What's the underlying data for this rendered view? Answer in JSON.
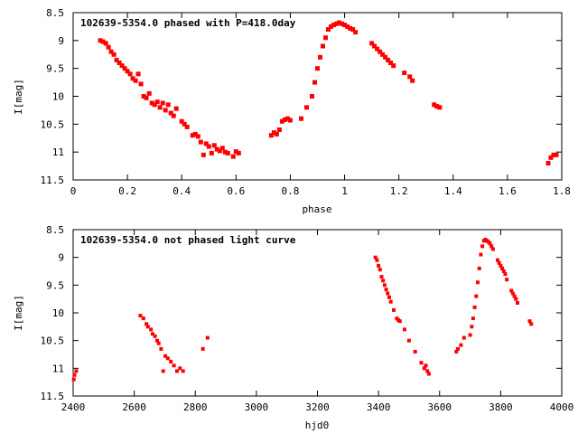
{
  "chart_data": [
    {
      "type": "scatter",
      "title": "102639-5354.0 phased with P=418.0day",
      "xlabel": "phase",
      "ylabel": "I[mag]",
      "xlim": [
        0,
        1.8
      ],
      "ylim": [
        8.5,
        11.5
      ],
      "y_inverted": true,
      "xticks": [
        "0",
        "0.2",
        "0.4",
        "0.6",
        "0.8",
        "1",
        "1.2",
        "1.4",
        "1.6",
        "1.8"
      ],
      "yticks": [
        "8.5",
        "9",
        "9.5",
        "10",
        "10.5",
        "11",
        "11.5"
      ],
      "marker_color": "#ff0000",
      "series": [
        {
          "x": [
            0.1,
            0.11,
            0.12,
            0.13,
            0.14,
            0.15,
            0.16,
            0.17,
            0.18,
            0.19,
            0.2,
            0.21,
            0.22,
            0.23,
            0.24,
            0.25,
            0.26,
            0.27,
            0.28,
            0.29,
            0.3,
            0.31,
            0.32,
            0.33,
            0.34,
            0.35,
            0.36,
            0.37,
            0.38,
            0.4,
            0.41,
            0.42,
            0.44,
            0.45,
            0.46,
            0.47,
            0.48,
            0.49,
            0.5,
            0.51,
            0.52,
            0.53,
            0.54,
            0.55,
            0.56,
            0.57,
            0.59,
            0.6,
            0.61,
            0.73,
            0.74,
            0.75,
            0.76,
            0.77,
            0.78,
            0.79,
            0.8,
            0.84,
            0.86,
            0.88,
            0.89,
            0.9,
            0.91,
            0.92,
            0.93,
            0.94,
            0.95,
            0.96,
            0.97,
            0.98,
            0.99,
            1.0,
            1.01,
            1.02,
            1.03,
            1.04,
            1.1,
            1.11,
            1.12,
            1.13,
            1.14,
            1.15,
            1.16,
            1.17,
            1.18,
            1.22,
            1.24,
            1.25,
            1.33,
            1.34,
            1.35,
            1.75,
            1.76,
            1.77,
            1.78
          ],
          "y": [
            9.0,
            9.02,
            9.05,
            9.12,
            9.2,
            9.25,
            9.35,
            9.4,
            9.45,
            9.5,
            9.55,
            9.6,
            9.68,
            9.72,
            9.6,
            9.78,
            10.0,
            10.03,
            9.95,
            10.12,
            10.15,
            10.1,
            10.2,
            10.12,
            10.25,
            10.15,
            10.3,
            10.35,
            10.22,
            10.45,
            10.5,
            10.55,
            10.7,
            10.68,
            10.72,
            10.82,
            11.05,
            10.85,
            10.9,
            11.02,
            10.88,
            10.95,
            10.98,
            10.93,
            11.0,
            11.02,
            11.08,
            10.99,
            11.02,
            10.7,
            10.65,
            10.68,
            10.6,
            10.45,
            10.42,
            10.4,
            10.43,
            10.4,
            10.2,
            10.0,
            9.75,
            9.5,
            9.3,
            9.1,
            8.95,
            8.8,
            8.75,
            8.72,
            8.7,
            8.68,
            8.7,
            8.72,
            8.75,
            8.78,
            8.8,
            8.85,
            9.05,
            9.1,
            9.15,
            9.2,
            9.25,
            9.3,
            9.35,
            9.4,
            9.45,
            9.58,
            9.65,
            9.72,
            10.15,
            10.18,
            10.2,
            11.2,
            11.1,
            11.05,
            11.05
          ]
        }
      ]
    },
    {
      "type": "scatter",
      "title": "102639-5354.0 not phased light curve",
      "xlabel": "hjd0",
      "ylabel": "I[mag]",
      "xlim": [
        2400,
        4000
      ],
      "ylim": [
        8.5,
        11.5
      ],
      "y_inverted": true,
      "xticks": [
        "2400",
        "2600",
        "2800",
        "3000",
        "3200",
        "3400",
        "3600",
        "3800",
        "4000"
      ],
      "yticks": [
        "8.5",
        "9",
        "9.5",
        "10",
        "10.5",
        "11",
        "11.5"
      ],
      "marker_color": "#ff0000",
      "series": [
        {
          "x": [
            2402,
            2404,
            2410,
            2620,
            2630,
            2640,
            2645,
            2655,
            2660,
            2668,
            2675,
            2680,
            2688,
            2695,
            2702,
            2710,
            2720,
            2730,
            2740,
            2750,
            2760,
            2825,
            2840,
            3390,
            3395,
            3400,
            3405,
            3410,
            3415,
            3420,
            3425,
            3430,
            3435,
            3440,
            3450,
            3460,
            3465,
            3470,
            3485,
            3500,
            3520,
            3540,
            3550,
            3555,
            3560,
            3565,
            3655,
            3660,
            3670,
            3680,
            3700,
            3705,
            3710,
            3715,
            3720,
            3725,
            3730,
            3735,
            3740,
            3745,
            3750,
            3755,
            3760,
            3765,
            3770,
            3775,
            3790,
            3795,
            3800,
            3805,
            3810,
            3815,
            3820,
            3835,
            3840,
            3845,
            3850,
            3855,
            3895,
            3900
          ],
          "y": [
            11.2,
            11.12,
            11.05,
            10.05,
            10.1,
            10.2,
            10.25,
            10.3,
            10.38,
            10.42,
            10.5,
            10.55,
            10.65,
            11.05,
            10.78,
            10.82,
            10.88,
            10.95,
            11.05,
            11.0,
            11.05,
            10.65,
            10.45,
            9.0,
            9.05,
            9.15,
            9.22,
            9.35,
            9.42,
            9.5,
            9.58,
            9.65,
            9.72,
            9.8,
            9.95,
            10.1,
            10.13,
            10.15,
            10.3,
            10.5,
            10.7,
            10.9,
            11.0,
            10.95,
            11.05,
            11.1,
            10.7,
            10.65,
            10.58,
            10.45,
            10.4,
            10.25,
            10.1,
            9.9,
            9.7,
            9.45,
            9.2,
            8.95,
            8.8,
            8.7,
            8.68,
            8.7,
            8.72,
            8.75,
            8.8,
            8.85,
            9.05,
            9.1,
            9.15,
            9.2,
            9.25,
            9.3,
            9.4,
            9.6,
            9.65,
            9.7,
            9.75,
            9.82,
            10.15,
            10.2
          ]
        }
      ]
    }
  ]
}
